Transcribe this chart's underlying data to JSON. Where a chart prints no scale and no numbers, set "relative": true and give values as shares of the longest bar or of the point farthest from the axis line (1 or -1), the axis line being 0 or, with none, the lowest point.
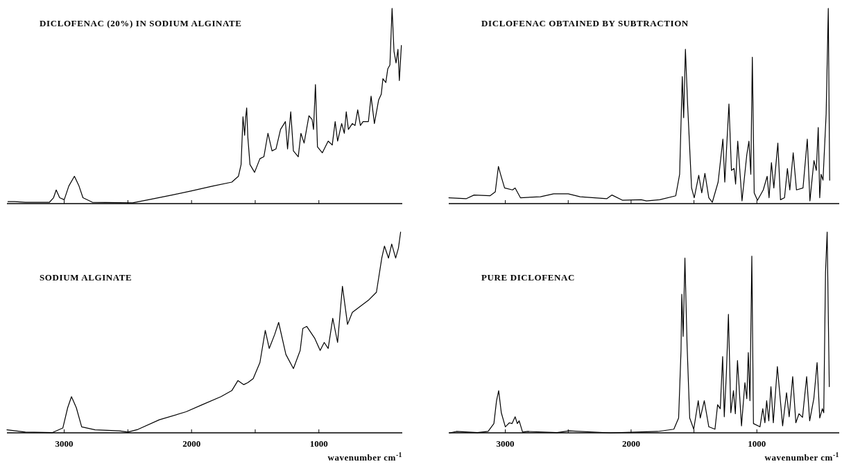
{
  "chart_data": [
    {
      "type": "line",
      "title": "DICLOFENAC (20%) IN SODIUM ALGINATE",
      "relative": true,
      "xlim": [
        3450,
        345
      ],
      "xticks": [
        {
          "value": 3000,
          "label": null
        },
        {
          "value": 2500,
          "label": null
        },
        {
          "value": 2000,
          "label": null
        },
        {
          "value": 1500,
          "label": null
        },
        {
          "value": 1000,
          "label": null
        }
      ],
      "tick_labels": false,
      "series": [
        {
          "color": "#000000",
          "x": [
            3442,
            3389,
            3305,
            3116,
            3084,
            3063,
            3036,
            3000,
            2964,
            2920,
            2884,
            2853,
            2779,
            2463,
            2337,
            2147,
            2000,
            1832,
            1684,
            1632,
            1611,
            1596,
            1583,
            1575,
            1567,
            1558,
            1541,
            1505,
            1463,
            1432,
            1400,
            1368,
            1337,
            1301,
            1263,
            1246,
            1221,
            1200,
            1162,
            1141,
            1116,
            1078,
            1053,
            1042,
            1027,
            1011,
            973,
            927,
            895,
            872,
            853,
            821,
            800,
            785,
            768,
            737,
            716,
            695,
            674,
            653,
            611,
            590,
            564,
            531,
            510,
            497,
            474,
            459,
            442,
            425,
            410,
            394,
            379,
            368,
            352
          ],
          "values": [
            0.01,
            0.01,
            0.007,
            0.007,
            0.03,
            0.07,
            0.03,
            0.02,
            0.09,
            0.14,
            0.09,
            0.03,
            0.007,
            0.004,
            0.02,
            0.045,
            0.065,
            0.09,
            0.11,
            0.14,
            0.2,
            0.445,
            0.35,
            0.44,
            0.49,
            0.34,
            0.2,
            0.16,
            0.23,
            0.24,
            0.36,
            0.27,
            0.28,
            0.38,
            0.42,
            0.28,
            0.47,
            0.27,
            0.24,
            0.36,
            0.31,
            0.45,
            0.43,
            0.38,
            0.61,
            0.29,
            0.26,
            0.32,
            0.3,
            0.42,
            0.32,
            0.41,
            0.36,
            0.47,
            0.38,
            0.41,
            0.4,
            0.48,
            0.4,
            0.42,
            0.42,
            0.55,
            0.41,
            0.53,
            0.56,
            0.64,
            0.62,
            0.69,
            0.71,
            1.0,
            0.78,
            0.72,
            0.79,
            0.63,
            0.81
          ]
        }
      ]
    },
    {
      "type": "line",
      "title": "DICLOFENAC OBTAINED BY SUBTRACTION",
      "relative": true,
      "xlim": [
        3450,
        345
      ],
      "xticks": [
        {
          "value": 3000,
          "label": null
        },
        {
          "value": 2500,
          "label": null
        },
        {
          "value": 2000,
          "label": null
        },
        {
          "value": 1500,
          "label": null
        },
        {
          "value": 1000,
          "label": null
        }
      ],
      "tick_labels": false,
      "series": [
        {
          "color": "#000000",
          "x": [
            3449,
            3312,
            3249,
            3122,
            3080,
            3055,
            3038,
            3006,
            2943,
            2922,
            2880,
            2721,
            2616,
            2500,
            2405,
            2194,
            2152,
            2067,
            1920,
            1878,
            1772,
            1645,
            1614,
            1593,
            1582,
            1568,
            1550,
            1519,
            1498,
            1462,
            1438,
            1413,
            1382,
            1354,
            1308,
            1270,
            1255,
            1222,
            1202,
            1181,
            1169,
            1152,
            1118,
            1080,
            1063,
            1048,
            1036,
            1021,
            995,
            949,
            918,
            903,
            884,
            865,
            833,
            812,
            780,
            757,
            738,
            711,
            685,
            633,
            599,
            578,
            546,
            527,
            512,
            500,
            489,
            474,
            449,
            432,
            421
          ],
          "values": [
            0.03,
            0.025,
            0.044,
            0.04,
            0.06,
            0.19,
            0.15,
            0.08,
            0.07,
            0.08,
            0.03,
            0.035,
            0.05,
            0.05,
            0.035,
            0.025,
            0.044,
            0.017,
            0.02,
            0.014,
            0.02,
            0.04,
            0.15,
            0.65,
            0.44,
            0.79,
            0.5,
            0.08,
            0.03,
            0.145,
            0.055,
            0.155,
            0.03,
            0.007,
            0.11,
            0.33,
            0.11,
            0.51,
            0.17,
            0.18,
            0.1,
            0.32,
            0.014,
            0.25,
            0.32,
            0.15,
            0.75,
            0.055,
            0.017,
            0.07,
            0.14,
            0.03,
            0.21,
            0.08,
            0.31,
            0.02,
            0.03,
            0.18,
            0.07,
            0.26,
            0.07,
            0.08,
            0.33,
            0.014,
            0.22,
            0.17,
            0.39,
            0.03,
            0.15,
            0.12,
            0.46,
            1.0,
            0.12
          ]
        }
      ]
    },
    {
      "type": "line",
      "title": "SODIUM ALGINATE",
      "xlabel": "wavenumber cm$^{-1}$",
      "relative": true,
      "xlim": [
        3450,
        345
      ],
      "xticks": [
        3000,
        {
          "value": 2500,
          "label": null
        },
        2000,
        {
          "value": 1500,
          "label": null
        },
        1000
      ],
      "tick_labels": "x",
      "series": [
        {
          "color": "#000000",
          "x": [
            3450,
            3305,
            3095,
            3011,
            2973,
            2943,
            2905,
            2863,
            2758,
            2568,
            2500,
            2421,
            2253,
            2042,
            1916,
            1769,
            1684,
            1636,
            1590,
            1558,
            1516,
            1463,
            1421,
            1390,
            1347,
            1316,
            1259,
            1200,
            1147,
            1126,
            1095,
            1032,
            990,
            958,
            927,
            891,
            853,
            815,
            775,
            737,
            674,
            611,
            548,
            506,
            485,
            453,
            428,
            397,
            375,
            358
          ],
          "values": [
            0.015,
            0.004,
            0.001,
            0.024,
            0.125,
            0.18,
            0.125,
            0.03,
            0.015,
            0.01,
            0.004,
            0.017,
            0.065,
            0.105,
            0.14,
            0.18,
            0.21,
            0.26,
            0.24,
            0.25,
            0.27,
            0.35,
            0.51,
            0.42,
            0.49,
            0.55,
            0.39,
            0.32,
            0.41,
            0.52,
            0.53,
            0.47,
            0.41,
            0.45,
            0.42,
            0.57,
            0.45,
            0.73,
            0.54,
            0.6,
            0.63,
            0.66,
            0.7,
            0.87,
            0.93,
            0.87,
            0.94,
            0.87,
            0.92,
            1.0
          ]
        }
      ]
    },
    {
      "type": "line",
      "title": "PURE DICLOFENAC",
      "xlabel": "wavenumber cm$^{-1}$",
      "relative": true,
      "xlim": [
        3450,
        345
      ],
      "xticks": [
        3000,
        {
          "value": 2500,
          "label": null
        },
        2000,
        {
          "value": 1500,
          "label": null
        },
        1000
      ],
      "tick_labels": "x",
      "series": [
        {
          "color": "#000000",
          "x": [
            3440,
            3390,
            3222,
            3137,
            3091,
            3070,
            3053,
            3032,
            3000,
            2968,
            2947,
            2922,
            2905,
            2890,
            2863,
            2821,
            2589,
            2494,
            2167,
            1787,
            1660,
            1622,
            1603,
            1597,
            1586,
            1572,
            1555,
            1534,
            1502,
            1466,
            1450,
            1418,
            1382,
            1333,
            1312,
            1291,
            1272,
            1259,
            1242,
            1226,
            1207,
            1186,
            1171,
            1154,
            1122,
            1095,
            1080,
            1068,
            1055,
            1040,
            1027,
            975,
            953,
            936,
            922,
            905,
            888,
            869,
            837,
            795,
            764,
            743,
            715,
            690,
            665,
            637,
            604,
            580,
            547,
            521,
            500,
            479,
            468,
            454,
            441,
            424
          ],
          "values": [
            0,
            0.007,
            0.001,
            0.007,
            0.046,
            0.16,
            0.21,
            0.1,
            0.03,
            0.05,
            0.046,
            0.08,
            0.046,
            0.06,
            0.004,
            0.007,
            0.001,
            0.01,
            0,
            0.007,
            0.018,
            0.074,
            0.41,
            0.69,
            0.48,
            0.87,
            0.44,
            0.074,
            0.018,
            0.16,
            0.074,
            0.16,
            0.03,
            0.018,
            0.14,
            0.12,
            0.38,
            0.08,
            0.3,
            0.59,
            0.1,
            0.21,
            0.095,
            0.36,
            0.035,
            0.25,
            0.17,
            0.4,
            0.16,
            0.88,
            0.046,
            0.03,
            0.12,
            0.05,
            0.16,
            0.06,
            0.23,
            0.05,
            0.33,
            0.035,
            0.2,
            0.08,
            0.28,
            0.05,
            0.095,
            0.077,
            0.28,
            0.06,
            0.17,
            0.35,
            0.074,
            0.12,
            0.1,
            0.8,
            1.0,
            0.23
          ]
        }
      ]
    }
  ]
}
